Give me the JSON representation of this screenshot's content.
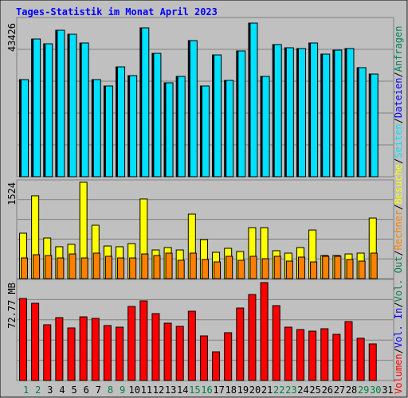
{
  "chart_data": [
    {
      "type": "bar",
      "title": "Tages-Statistik im Monat April 2023",
      "categories": [
        "1",
        "2",
        "3",
        "4",
        "5",
        "6",
        "7",
        "8",
        "9",
        "10",
        "11",
        "12",
        "13",
        "14",
        "15",
        "16",
        "17",
        "18",
        "19",
        "20",
        "21",
        "22",
        "23",
        "24",
        "25",
        "26",
        "27",
        "28",
        "29",
        "30",
        "31"
      ],
      "category_colors": [
        "#008040",
        "#008040",
        "#000000",
        "#000000",
        "#000000",
        "#000000",
        "#000000",
        "#008040",
        "#008040",
        "#000000",
        "#000000",
        "#000000",
        "#000000",
        "#000000",
        "#008040",
        "#008040",
        "#000000",
        "#000000",
        "#000000",
        "#000000",
        "#000000",
        "#008040",
        "#008040",
        "#000000",
        "#000000",
        "#000000",
        "#000000",
        "#000000",
        "#008040",
        "#008040",
        "#000000"
      ],
      "ylim": [
        0,
        43426
      ],
      "yticks": [
        43426
      ],
      "series": [
        {
          "name": "Anfragen",
          "color": "#00805c",
          "values": [
            27450,
            38925,
            37575,
            41400,
            40275,
            37800,
            27450,
            25650,
            31050,
            28575,
            42075,
            34875,
            26550,
            28350,
            38475,
            25650,
            34425,
            27225,
            35550,
            43426,
            28350,
            37350,
            36450,
            36225,
            37800,
            34650,
            35775,
            36225,
            30825,
            29025,
            null
          ]
        },
        {
          "name": "Dateien",
          "color": "#0000ff",
          "values": [
            27450,
            38925,
            37575,
            41400,
            40275,
            37800,
            27450,
            25650,
            31050,
            28575,
            42075,
            34875,
            26550,
            28350,
            38475,
            25650,
            34425,
            27225,
            35550,
            43426,
            28350,
            37350,
            36450,
            36225,
            37800,
            34650,
            35775,
            36225,
            30825,
            29025,
            null
          ]
        },
        {
          "name": "Seiten",
          "color": "#00e0ff",
          "values": [
            27450,
            38925,
            37575,
            41400,
            40275,
            37800,
            27450,
            25650,
            31050,
            28575,
            42075,
            34875,
            26550,
            28350,
            38475,
            25650,
            34425,
            27225,
            35550,
            43426,
            28350,
            37350,
            36450,
            36225,
            37800,
            34650,
            35775,
            36225,
            30825,
            29025,
            null
          ]
        }
      ]
    },
    {
      "type": "bar",
      "ylim": [
        0,
        1524
      ],
      "yticks": [
        1524
      ],
      "series": [
        {
          "name": "Besuche",
          "color": "#ffff00",
          "values": [
            718,
            1310,
            642,
            504,
            542,
            1524,
            844,
            516,
            504,
            554,
            1260,
            453,
            491,
            453,
            1020,
            617,
            416,
            479,
            428,
            806,
            806,
            441,
            403,
            491,
            768,
            365,
            365,
            390,
            403,
            957,
            null
          ]
        },
        {
          "name": "Rechner",
          "color": "#ff8000",
          "values": [
            327,
            378,
            365,
            327,
            390,
            327,
            403,
            353,
            327,
            327,
            390,
            365,
            403,
            290,
            403,
            302,
            264,
            353,
            290,
            353,
            315,
            353,
            277,
            340,
            264,
            353,
            353,
            302,
            277,
            403,
            null
          ]
        }
      ]
    },
    {
      "type": "bar",
      "ylim": [
        0,
        72.77
      ],
      "yticks": [
        {
          "value": 72.77,
          "label": "72.77 MB"
        }
      ],
      "series": [
        {
          "name": "Volumen",
          "color": "#ff0000",
          "values": [
            60.94,
            57.39,
            41.41,
            46.74,
            39.05,
            47.33,
            46.15,
            40.82,
            39.64,
            55.02,
            59.16,
            49.7,
            42.6,
            40.23,
            51.47,
            33.13,
            21.3,
            35.5,
            53.84,
            63.9,
            72.77,
            55.61,
            39.64,
            37.86,
            36.68,
            38.46,
            34.31,
            43.78,
            31.36,
            27.21,
            null
          ]
        },
        {
          "name": "Vol. In",
          "color": "#0000ff",
          "values": [
            null,
            null,
            null,
            null,
            null,
            null,
            null,
            null,
            null,
            null,
            null,
            null,
            null,
            null,
            null,
            null,
            null,
            null,
            null,
            null,
            null,
            null,
            null,
            null,
            null,
            null,
            null,
            null,
            null,
            null,
            null
          ]
        },
        {
          "name": "Vol. Out",
          "color": "#008040",
          "values": [
            null,
            null,
            null,
            null,
            null,
            null,
            null,
            null,
            null,
            null,
            null,
            null,
            null,
            null,
            null,
            null,
            null,
            null,
            null,
            null,
            null,
            null,
            null,
            null,
            null,
            null,
            null,
            null,
            null,
            null,
            null
          ]
        }
      ]
    }
  ],
  "legend_separator": "/"
}
